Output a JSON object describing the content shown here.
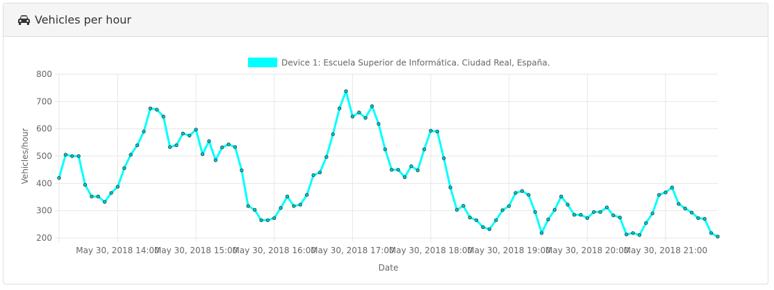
{
  "panel": {
    "title": "Vehicles per hour",
    "icon": "car-icon"
  },
  "chart_data": {
    "type": "line",
    "xlabel": "Date",
    "ylabel": "Vehicles/hour",
    "ylim": [
      200,
      800
    ],
    "yticks": [
      200,
      300,
      400,
      500,
      600,
      700,
      800
    ],
    "xticks": [
      "May 30, 2018 14:00",
      "May 30, 2018 15:00",
      "May 30, 2018 16:00",
      "May 30, 2018 17:00",
      "May 30, 2018 18:00",
      "May 30, 2018 19:00",
      "May 30, 2018 20:00",
      "May 30, 2018 21:00"
    ],
    "x_start": "May 30, 2018 13:15",
    "x_end": "May 30, 2018 21:40",
    "x_step_minutes": 5,
    "grid": true,
    "legend_position": "top",
    "series": [
      {
        "name": "Device 1: Escuela Superior de Informática. Ciudad Real, España.",
        "color": "#00ffff",
        "values": [
          420,
          505,
          500,
          500,
          395,
          352,
          352,
          332,
          365,
          388,
          456,
          505,
          540,
          590,
          675,
          670,
          645,
          533,
          540,
          583,
          575,
          597,
          507,
          555,
          485,
          532,
          543,
          533,
          448,
          317,
          303,
          265,
          265,
          273,
          310,
          352,
          317,
          322,
          358,
          430,
          440,
          497,
          580,
          675,
          738,
          645,
          660,
          640,
          683,
          618,
          525,
          450,
          450,
          423,
          463,
          448,
          525,
          593,
          590,
          492,
          385,
          303,
          318,
          275,
          265,
          240,
          232,
          265,
          302,
          317,
          365,
          372,
          358,
          295,
          218,
          268,
          303,
          352,
          322,
          285,
          285,
          273,
          295,
          295,
          312,
          283,
          275,
          213,
          218,
          211,
          255,
          290,
          358,
          367,
          385,
          325,
          308,
          293,
          273,
          270,
          218,
          205
        ]
      }
    ]
  }
}
